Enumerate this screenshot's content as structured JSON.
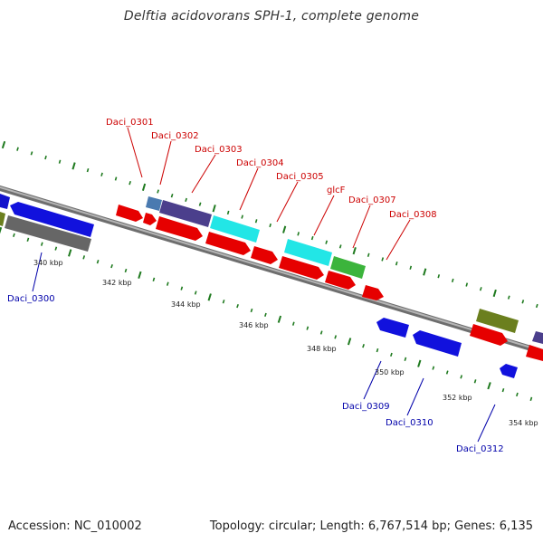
{
  "title": "Delftia acidovorans SPH-1, complete genome",
  "footer": {
    "accession": "Accession: NC_010002",
    "stats": "Topology: circular; Length: 6,767,514 bp; Genes: 6,135"
  },
  "colors": {
    "backbone": "#8c8c8c",
    "ticks": "#1f7a1f",
    "label_top": "#cc0000",
    "label_bottom": "#0000aa"
  },
  "scale_labels": [
    "340 kbp",
    "342 kbp",
    "344 kbp",
    "346 kbp",
    "348 kbp",
    "350 kbp",
    "352 kbp",
    "354 kbp"
  ],
  "gene_labels": {
    "top": [
      "Daci_0301",
      "Daci_0302",
      "Daci_0303",
      "Daci_0304",
      "Daci_0305",
      "glcF",
      "Daci_0307",
      "Daci_0308"
    ],
    "bottom": [
      "Daci_0300",
      "Daci_0309",
      "Daci_0310",
      "Daci_0312"
    ]
  }
}
